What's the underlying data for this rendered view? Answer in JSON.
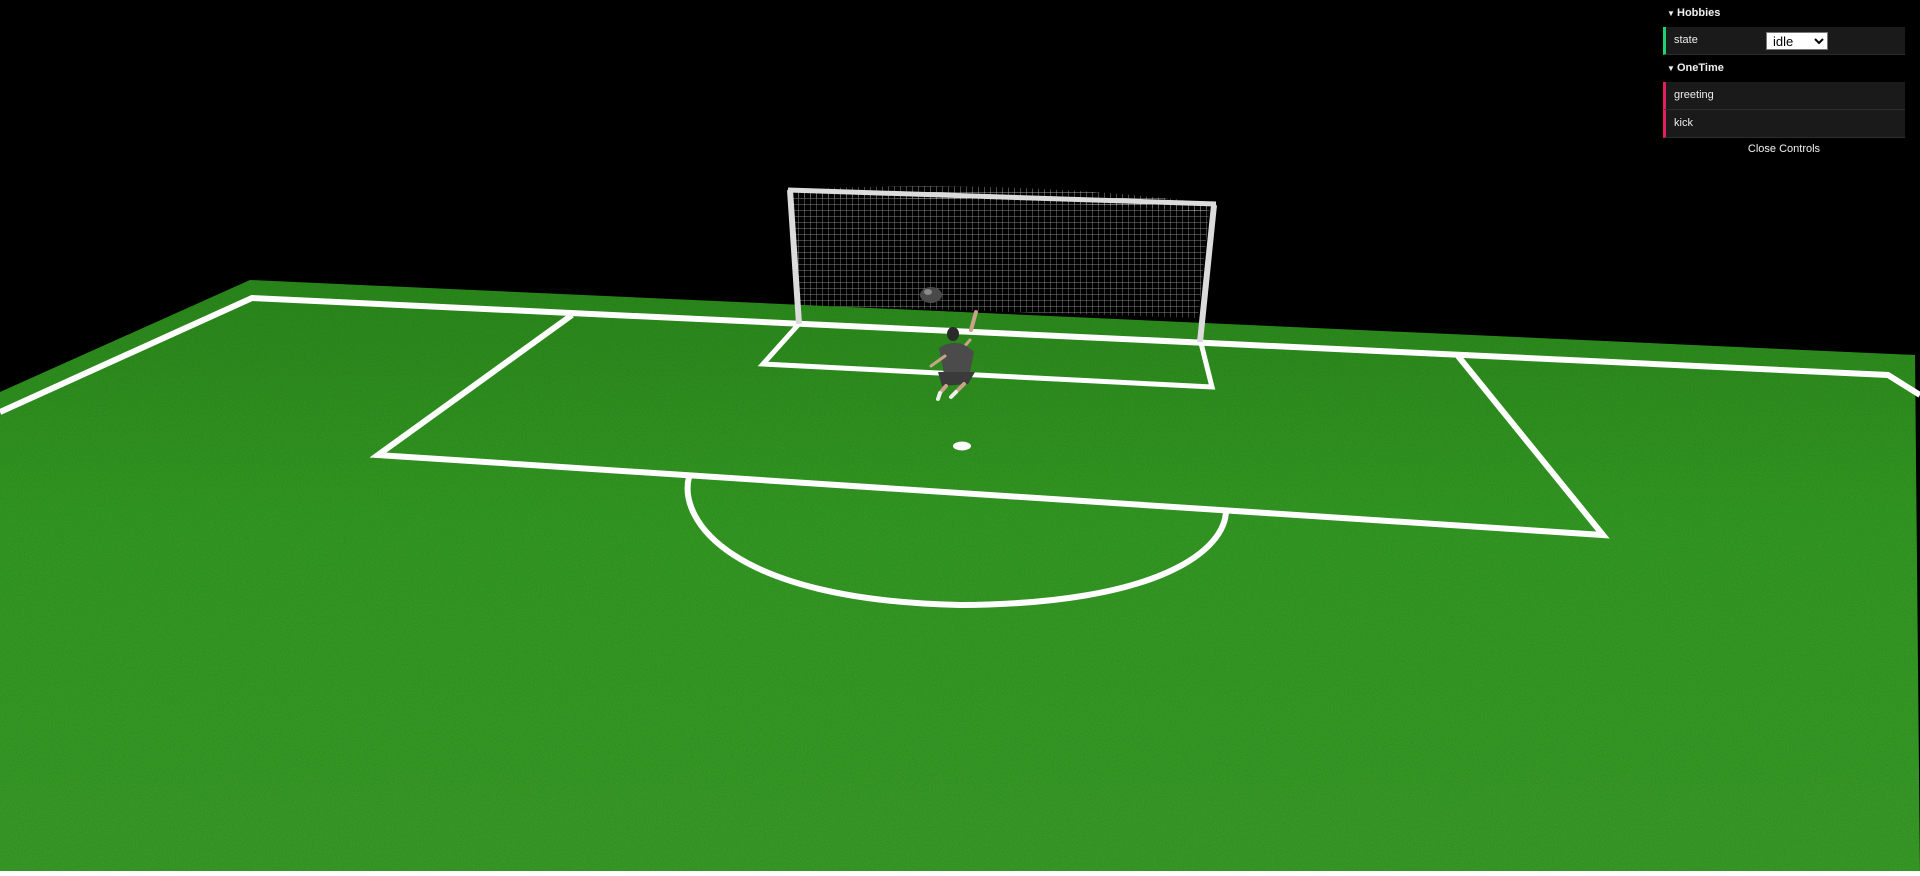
{
  "scene": {
    "name": "soccer-penalty-scene",
    "colors": {
      "sky": "#000000",
      "pitch": "#3a9a24",
      "lines": "#ffffff",
      "net": "#e8e8e8"
    }
  },
  "gui": {
    "folders": [
      {
        "title": "Hobbies",
        "controllers": [
          {
            "kind": "select",
            "label": "state",
            "value": "idle",
            "options": [
              "idle"
            ]
          }
        ]
      },
      {
        "title": "OneTime",
        "controllers": [
          {
            "kind": "function",
            "label": "greeting"
          },
          {
            "kind": "function",
            "label": "kick"
          }
        ]
      }
    ],
    "close_label": "Close Controls"
  }
}
